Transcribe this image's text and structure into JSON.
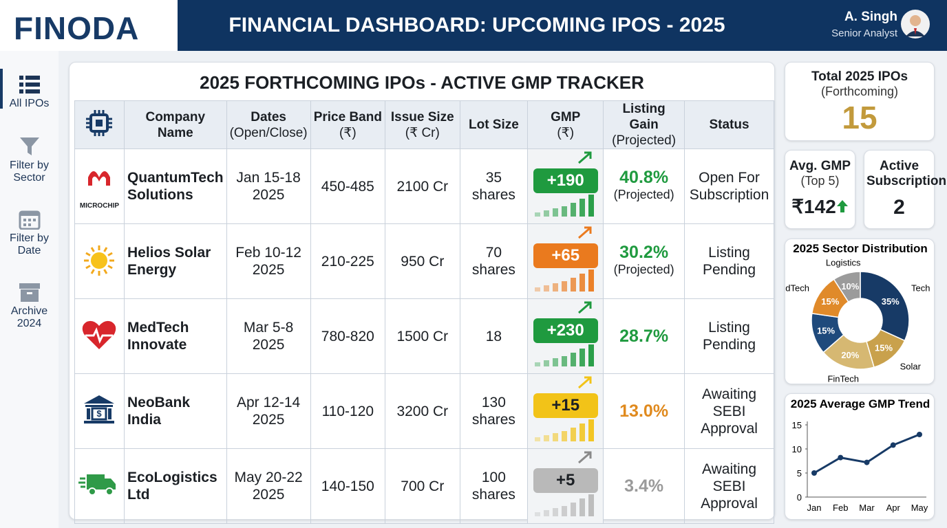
{
  "header": {
    "logo": "FINODA",
    "title": "FINANCIAL DASHBOARD: UPCOMING IPOS - 2025",
    "user_name": "A. Singh",
    "user_role": "Senior Analyst"
  },
  "sidebar": [
    "All IPOs",
    "Filter by Sector",
    "Filter by Date",
    "Archive 2024"
  ],
  "table": {
    "title": "2025 FORTHCOMING IPOs - ACTIVE GMP TRACKER",
    "columns": [
      {
        "title": "Company Name"
      },
      {
        "title": "Dates",
        "sub": "(Open/Close)"
      },
      {
        "title": "Price Band",
        "sub": "(₹)"
      },
      {
        "title": "Issue Size",
        "sub": "(₹ Cr)"
      },
      {
        "title": "Lot Size"
      },
      {
        "title": "GMP",
        "sub": "(₹)"
      },
      {
        "title": "Listing Gain",
        "sub": "(Projected)"
      },
      {
        "title": "Status"
      }
    ],
    "rows": [
      {
        "logo_text": "MICROCHIP",
        "company": "QuantumTech Solutions",
        "dates": "Jan 15-18 2025",
        "price_band": "450-485",
        "issue_size": "2100 Cr",
        "lot_size": "35 shares",
        "gmp": "+190",
        "gmp_color": "#1f9a3f",
        "listing_gain": "40.8%",
        "gain_note": "(Projected)",
        "gain_color": "#1f9a3f",
        "status": "Open For Subscription"
      },
      {
        "company": "Helios Solar Energy",
        "dates": "Feb 10-12 2025",
        "price_band": "210-225",
        "issue_size": "950 Cr",
        "lot_size": "70 shares",
        "gmp": "+65",
        "gmp_color": "#ea7a1e",
        "listing_gain": "30.2%",
        "gain_note": "(Projected)",
        "gain_color": "#1f9a3f",
        "status": "Listing Pending"
      },
      {
        "company": "MedTech Innovate",
        "dates": "Mar 5-8 2025",
        "price_band": "780-820",
        "issue_size": "1500 Cr",
        "lot_size": "18",
        "gmp": "+230",
        "gmp_color": "#1f9a3f",
        "listing_gain": "28.7%",
        "gain_color": "#1f9a3f",
        "status": "Listing Pending"
      },
      {
        "company": "NeoBank India",
        "dates": "Apr 12-14 2025",
        "price_band": "110-120",
        "issue_size": "3200 Cr",
        "lot_size": "130 shares",
        "gmp": "+15",
        "gmp_color": "#f2c318",
        "listing_gain": "13.0%",
        "gain_color": "#e08a1e",
        "status": "Awaiting SEBI Approval"
      },
      {
        "company": "EcoLogistics Ltd",
        "dates": "May 20-22 2025",
        "price_band": "140-150",
        "issue_size": "700 Cr",
        "lot_size": "100 shares",
        "gmp": "+5",
        "gmp_color": "#b9b9b9",
        "listing_gain": "3.4%",
        "gain_color": "#9a9a9a",
        "status": "Awaiting SEBI Approval"
      }
    ]
  },
  "kpis": {
    "total": {
      "title": "Total 2025 IPOs",
      "sub": "(Forthcoming)",
      "value": "15"
    },
    "avg_gmp": {
      "title": "Avg. GMP",
      "sub": "(Top 5)",
      "value": "₹142"
    },
    "active": {
      "title": "Active Subscriptions",
      "value": "2"
    }
  },
  "sector_chart": {
    "type": "pie",
    "title": "2025 Sector Distribution",
    "categories": [
      "Tech",
      "Solar",
      "FinTech",
      null,
      "MedTech",
      "Logistics"
    ],
    "values": [
      35,
      15,
      20,
      15,
      15,
      10
    ],
    "value_labels": [
      "35%",
      "15%",
      "20%",
      "15%",
      "15%",
      "10%"
    ],
    "colors": [
      "#173a66",
      "#c9a14c",
      "#d6b872",
      "#1f4a7c",
      "#e08a2a",
      "#9b9b9b"
    ]
  },
  "trend_chart": {
    "type": "line",
    "title": "2025 Average GMP Trend",
    "categories": [
      "Jan",
      "Feb",
      "Mar",
      "Apr",
      "May"
    ],
    "values": [
      5,
      8.2,
      7.2,
      10.8,
      13
    ],
    "color": "#173a66",
    "ylim": [
      0,
      15
    ],
    "yticks": [
      0,
      5,
      10,
      15
    ]
  }
}
